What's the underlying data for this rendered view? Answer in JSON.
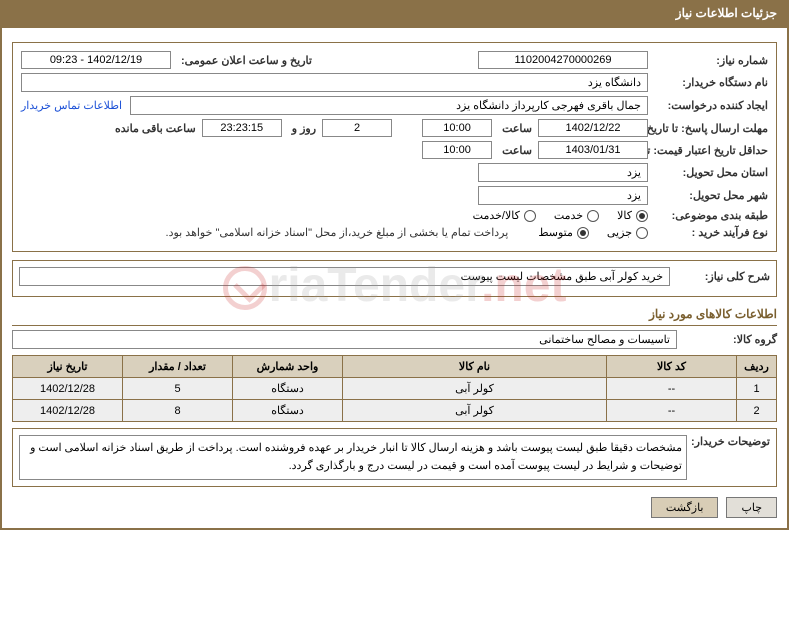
{
  "header": {
    "title": "جزئیات اطلاعات نیاز"
  },
  "info": {
    "need_no_label": "شماره نیاز:",
    "need_no": "1102004270000269",
    "announce_label": "تاریخ و ساعت اعلان عمومی:",
    "announce_val": "1402/12/19 - 09:23",
    "buyer_org_label": "نام دستگاه خریدار:",
    "buyer_org": "دانشگاه یزد",
    "requester_label": "ایجاد کننده درخواست:",
    "requester": "جمال باقری فهرجی کارپرداز دانشگاه یزد",
    "contact_link": "اطلاعات تماس خریدار",
    "deadline_label": "مهلت ارسال پاسخ: تا تاریخ:",
    "deadline_date": "1402/12/22",
    "time_label": "ساعت",
    "deadline_time": "10:00",
    "days": "2",
    "days_suffix": "روز و",
    "countdown": "23:23:15",
    "remain_label": "ساعت باقی مانده",
    "validity_label": "حداقل تاریخ اعتبار قیمت: تا تاریخ:",
    "validity_date": "1403/01/31",
    "validity_time": "10:00",
    "province_label": "استان محل تحویل:",
    "province": "یزد",
    "city_label": "شهر محل تحویل:",
    "city": "یزد",
    "category_label": "طبقه بندی موضوعی:",
    "radios_cat": [
      {
        "label": "کالا",
        "selected": true
      },
      {
        "label": "خدمت",
        "selected": false
      },
      {
        "label": "کالا/خدمت",
        "selected": false
      }
    ],
    "process_label": "نوع فرآیند خرید :",
    "radios_proc": [
      {
        "label": "جزیی",
        "selected": false
      },
      {
        "label": "متوسط",
        "selected": true
      }
    ],
    "process_note": "پرداخت تمام یا بخشی از مبلغ خرید،از محل \"اسناد خزانه اسلامی\" خواهد بود."
  },
  "need_desc": {
    "label": "شرح کلی نیاز:",
    "value": "خرید کولر آبی طبق مشخصات لیست پیوست"
  },
  "goods_section_title": "اطلاعات کالاهای مورد نیاز",
  "goods_group": {
    "label": "گروه کالا:",
    "value": "تاسیسات و مصالح ساختمانی"
  },
  "table": {
    "headers": [
      "ردیف",
      "کد کالا",
      "نام کالا",
      "واحد شمارش",
      "تعداد / مقدار",
      "تاریخ نیاز"
    ],
    "rows": [
      [
        "1",
        "--",
        "کولر آبی",
        "دستگاه",
        "5",
        "1402/12/28"
      ],
      [
        "2",
        "--",
        "کولر آبی",
        "دستگاه",
        "8",
        "1402/12/28"
      ]
    ],
    "col_widths": [
      "40px",
      "130px",
      "",
      "110px",
      "110px",
      "110px"
    ]
  },
  "buyer_note": {
    "label": "توضیحات خریدار:",
    "text": "مشخصات دقیقا طبق لیست پیوست باشد و هزینه ارسال کالا تا انبار خریدار بر عهده فروشنده است. پرداخت از طریق اسناد خزانه اسلامی است و توضیحات و شرایط در لیست پیوست آمده است و قیمت در لیست درج و بارگذاری گردد."
  },
  "buttons": {
    "print": "چاپ",
    "back": "بازگشت"
  },
  "colors": {
    "brand": "#8a7148",
    "th_bg": "#d9d0bd",
    "td_bg": "#eeeeee",
    "link": "#1a4fd6"
  },
  "watermark": {
    "text_black": "riaTender",
    "text_red": ".net"
  }
}
